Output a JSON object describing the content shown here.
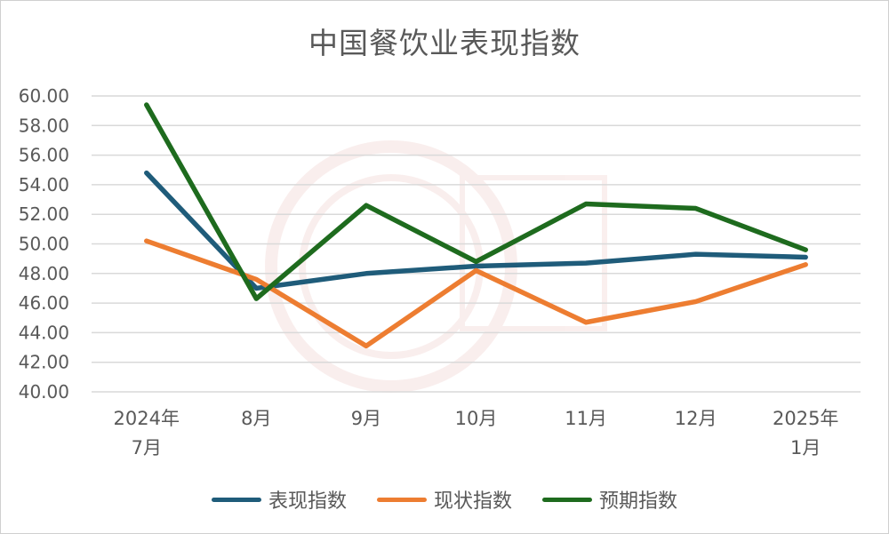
{
  "chart_data": {
    "type": "line",
    "title": "中国餐饮业表现指数",
    "categories": [
      [
        "2024年",
        "7月"
      ],
      [
        "8月"
      ],
      [
        "9月"
      ],
      [
        "10月"
      ],
      [
        "11月"
      ],
      [
        "12月"
      ],
      [
        "2025年",
        "1月"
      ]
    ],
    "y_ticks": [
      "40.00",
      "42.00",
      "44.00",
      "46.00",
      "48.00",
      "50.00",
      "52.00",
      "54.00",
      "56.00",
      "58.00",
      "60.00"
    ],
    "ylim": [
      40,
      60
    ],
    "grid": true,
    "legend_position": "bottom",
    "series": [
      {
        "name": "表现指数",
        "color": "#1f5c7a",
        "values": [
          54.8,
          47.0,
          48.0,
          48.5,
          48.7,
          49.3,
          49.1
        ]
      },
      {
        "name": "现状指数",
        "color": "#ed7d31",
        "values": [
          50.2,
          47.6,
          43.1,
          48.2,
          44.7,
          46.1,
          48.6
        ]
      },
      {
        "name": "预期指数",
        "color": "#1e6b1e",
        "values": [
          59.4,
          46.3,
          52.6,
          48.8,
          52.7,
          52.4,
          49.6
        ]
      }
    ]
  }
}
